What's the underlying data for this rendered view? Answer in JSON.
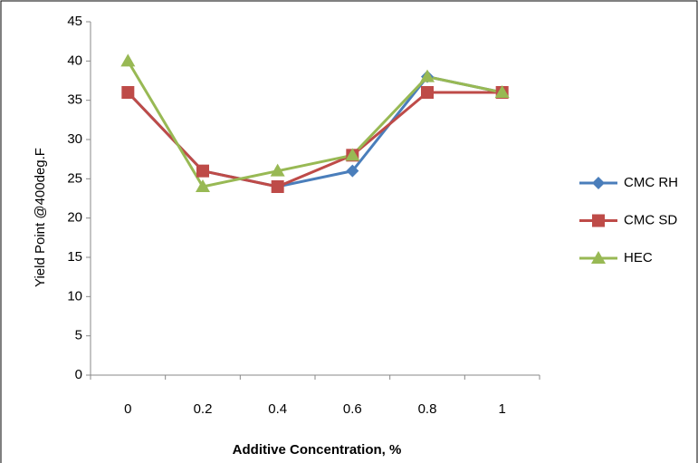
{
  "chart_data": {
    "type": "line",
    "x_label": "Additive Concentration, %",
    "y_label": "Yield Point @400deg.F",
    "categories": [
      "0",
      "0.2",
      "0.4",
      "0.6",
      "0.8",
      "1"
    ],
    "series": [
      {
        "name": "CMC RH",
        "color": "#4a7ebb",
        "marker": "diamond",
        "values": [
          36,
          26,
          24,
          26,
          38,
          36
        ]
      },
      {
        "name": "CMC SD",
        "color": "#be4b48",
        "marker": "square",
        "values": [
          36,
          26,
          24,
          28,
          36,
          36
        ]
      },
      {
        "name": "HEC",
        "color": "#98b954",
        "marker": "triangle",
        "values": [
          40,
          24,
          26,
          28,
          38,
          36
        ]
      }
    ],
    "ylim": [
      0,
      45
    ],
    "yticks": [
      0,
      5,
      10,
      15,
      20,
      25,
      30,
      35,
      40,
      45
    ],
    "grid": false,
    "legend": "right"
  }
}
